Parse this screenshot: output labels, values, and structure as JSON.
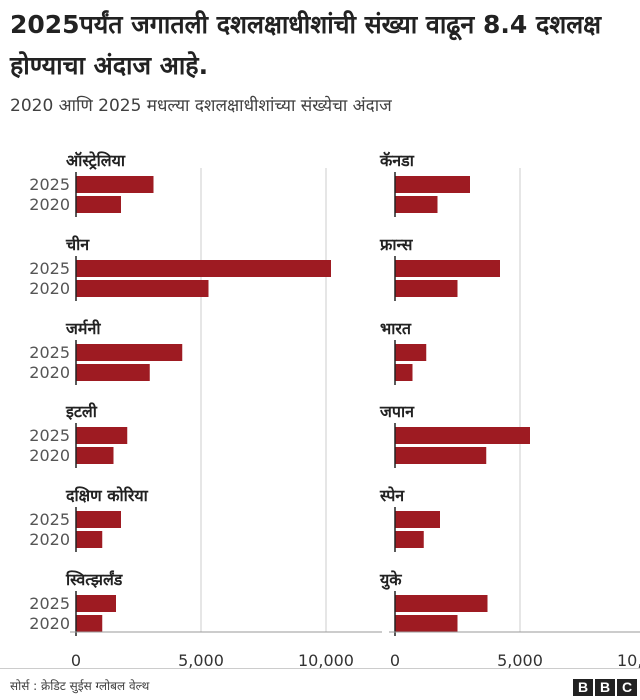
{
  "title": "2025पर्यंत जगातली दशलक्षाधीशांची संख्या वाढून 8.4 दशलक्ष होण्याचा अंदाज आहे.",
  "subtitle": "2020 आणि 2025 मधल्या दशलक्षाधीशांच्या संख्येचा अंदाज",
  "source": "सोर्स : क्रेडिट सुईस ग्लोबल वेल्थ",
  "logo_letters": [
    "B",
    "B",
    "C"
  ],
  "colors": {
    "bar": "#9e1b22",
    "grid": "#cccccc",
    "axis": "#222222"
  },
  "chart_data": {
    "type": "bar",
    "orientation": "horizontal",
    "series": [
      {
        "name": "2025",
        "color": "#9e1b22"
      },
      {
        "name": "2020",
        "color": "#9e1b22"
      }
    ],
    "xlim": [
      0,
      12000
    ],
    "x_ticks": [
      0,
      5000,
      10000
    ],
    "x_tick_labels": [
      "0",
      "5,000",
      "10,000"
    ],
    "grid": true,
    "panels": [
      {
        "country": "ऑस्ट्रेलिया",
        "values": {
          "2025": 3100,
          "2020": 1800
        }
      },
      {
        "country": "कॅनडा",
        "values": {
          "2025": 3000,
          "2020": 1700
        }
      },
      {
        "country": "चीन",
        "values": {
          "2025": 10200,
          "2020": 5300
        }
      },
      {
        "country": "फ्रान्स",
        "values": {
          "2025": 4200,
          "2020": 2500
        }
      },
      {
        "country": "जर्मनी",
        "values": {
          "2025": 4250,
          "2020": 2950
        }
      },
      {
        "country": "भारत",
        "values": {
          "2025": 1250,
          "2020": 700
        }
      },
      {
        "country": "इटली",
        "values": {
          "2025": 2050,
          "2020": 1500
        }
      },
      {
        "country": "जपान",
        "values": {
          "2025": 5400,
          "2020": 3650
        }
      },
      {
        "country": "दक्षिण कोरिया",
        "values": {
          "2025": 1800,
          "2020": 1050
        }
      },
      {
        "country": "स्पेन",
        "values": {
          "2025": 1800,
          "2020": 1150
        }
      },
      {
        "country": "स्वित्झर्लंड",
        "values": {
          "2025": 1600,
          "2020": 1050
        }
      },
      {
        "country": "युके",
        "values": {
          "2025": 3700,
          "2020": 2500
        }
      }
    ]
  }
}
